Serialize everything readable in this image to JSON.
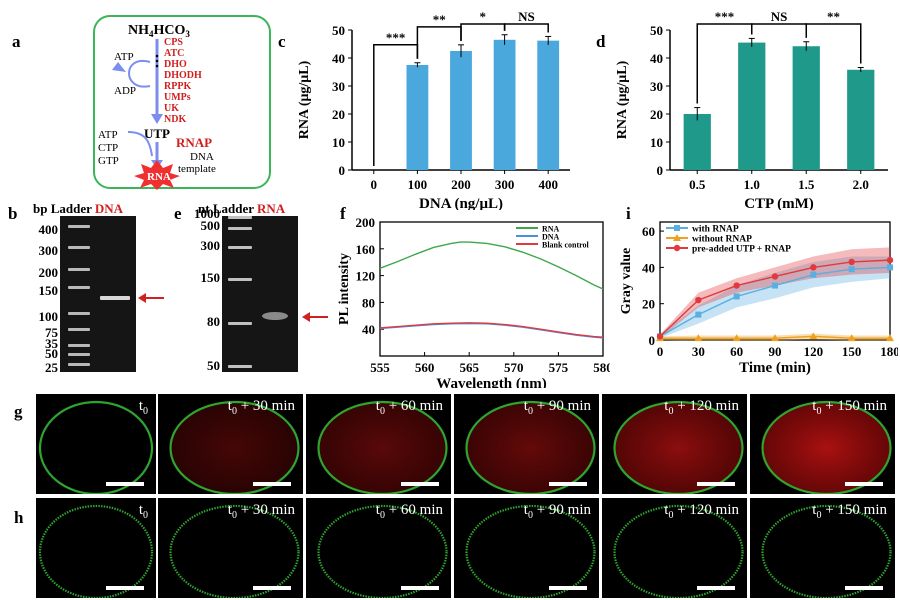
{
  "panel_a": {
    "label": "a",
    "top": "NH4HCO3",
    "enzymes": [
      "CPS",
      "ATC",
      "DHO",
      "DHODH",
      "RPPK",
      "UMPs",
      "UK",
      "NDK"
    ],
    "left_top": "ATP",
    "left_bottom": "ADP",
    "utp": "UTP",
    "inputs": [
      "ATP",
      "CTP",
      "GTP"
    ],
    "rnap": "RNAP",
    "template_line1": "DNA",
    "template_line2": "template",
    "product": "RNA"
  },
  "panel_b": {
    "label": "b",
    "header_unit": "bp",
    "header_ladder": "Ladder",
    "header_sample": "DNA",
    "ladder_ticks": [
      "400",
      "300",
      "200",
      "150",
      "100",
      "75",
      "50",
      "35",
      "25"
    ]
  },
  "panel_e": {
    "label": "e",
    "header_unit": "nt",
    "header_ladder": "Ladder",
    "header_sample": "RNA",
    "ladder_ticks": [
      "1000",
      "500",
      "300",
      "150",
      "80",
      "50"
    ]
  },
  "chart_data": [
    {
      "id": "c",
      "type": "bar",
      "xlabel": "DNA (ng/μL)",
      "ylabel": "RNA (μg/μL)",
      "categories": [
        "0",
        "100",
        "200",
        "300",
        "400"
      ],
      "values": [
        0,
        37.5,
        42.5,
        46.5,
        46.2
      ],
      "errors": [
        0,
        0.8,
        2.2,
        1.8,
        1.5
      ],
      "ylim": [
        0,
        50
      ],
      "yticks": [
        "0",
        "10",
        "20",
        "30",
        "40",
        "50"
      ],
      "significance": [
        {
          "from": "0",
          "to": "100",
          "label": "***"
        },
        {
          "from": "100",
          "to": "200",
          "label": "**"
        },
        {
          "from": "200",
          "to": "300",
          "label": "*"
        },
        {
          "from": "300",
          "to": "400",
          "label": "NS"
        }
      ],
      "bar_color": "#4aa8dc"
    },
    {
      "id": "d",
      "type": "bar",
      "xlabel": "CTP (mM)",
      "ylabel": "RNA (μg/μL)",
      "categories": [
        "0.5",
        "1.0",
        "1.5",
        "2.0"
      ],
      "values": [
        20,
        45.5,
        44.2,
        35.8
      ],
      "errors": [
        2.3,
        1.5,
        1.6,
        0.8
      ],
      "ylim": [
        0,
        50
      ],
      "yticks": [
        "0",
        "10",
        "20",
        "30",
        "40",
        "50"
      ],
      "significance": [
        {
          "from": "0.5",
          "to": "1.0",
          "label": "***"
        },
        {
          "from": "1.0",
          "to": "1.5",
          "label": "NS"
        },
        {
          "from": "1.5",
          "to": "2.0",
          "label": "**"
        }
      ],
      "bar_color": "#1f9a8a"
    },
    {
      "id": "f",
      "type": "line",
      "xlabel": "Wavelength (nm)",
      "ylabel": "PL intensity",
      "xlim": [
        555,
        580
      ],
      "ylim": [
        0,
        200
      ],
      "xticks": [
        "555",
        "560",
        "565",
        "570",
        "575",
        "580"
      ],
      "yticks": [
        "40",
        "80",
        "120",
        "160",
        "200"
      ],
      "legend": "top-right",
      "series": [
        {
          "name": "RNA",
          "color": "#3da84a",
          "x": [
            555,
            557,
            559,
            561,
            563,
            564,
            565,
            567,
            569,
            571,
            573,
            575,
            577,
            579,
            580
          ],
          "y": [
            131,
            141,
            152,
            162,
            168,
            170,
            170,
            168,
            163,
            155,
            145,
            133,
            120,
            106,
            100
          ]
        },
        {
          "name": "DNA",
          "color": "#4a90e2",
          "x": [
            555,
            557,
            559,
            561,
            563,
            565,
            567,
            569,
            571,
            573,
            575,
            577,
            579,
            580
          ],
          "y": [
            41,
            43,
            45,
            47,
            48,
            48.5,
            48,
            46,
            43,
            39,
            35,
            31,
            28,
            27
          ]
        },
        {
          "name": "Blank control",
          "color": "#e0393e",
          "x": [
            555,
            557,
            559,
            561,
            563,
            565,
            567,
            569,
            571,
            573,
            575,
            577,
            579,
            580
          ],
          "y": [
            42,
            44,
            46,
            48,
            49,
            49.5,
            49,
            47,
            44,
            40,
            36,
            32,
            29,
            28
          ]
        }
      ]
    },
    {
      "id": "i",
      "type": "line",
      "xlabel": "Time (min)",
      "ylabel": "Gray value",
      "xlim": [
        0,
        180
      ],
      "ylim": [
        0,
        65
      ],
      "xticks": [
        "0",
        "30",
        "60",
        "90",
        "120",
        "150",
        "180"
      ],
      "yticks": [
        "0",
        "20",
        "40",
        "60"
      ],
      "legend": "top-left",
      "series": [
        {
          "name": "with RNAP",
          "color": "#5aaee0",
          "marker": "square",
          "x": [
            0,
            30,
            60,
            90,
            120,
            150,
            180
          ],
          "y": [
            2,
            14,
            24,
            30,
            36,
            39,
            40
          ],
          "band": [
            1,
            5,
            6,
            7,
            7,
            7,
            6
          ]
        },
        {
          "name": "without RNAP",
          "color": "#f0a020",
          "marker": "triangle",
          "x": [
            0,
            30,
            60,
            90,
            120,
            150,
            180
          ],
          "y": [
            1,
            1,
            1,
            1,
            2,
            1,
            1
          ],
          "band": [
            1,
            1.5,
            1.5,
            1.5,
            1.5,
            1.5,
            1.5
          ]
        },
        {
          "name": "pre-added UTP + RNAP",
          "color": "#e0393e",
          "marker": "circle",
          "x": [
            0,
            30,
            60,
            90,
            120,
            150,
            180
          ],
          "y": [
            2,
            22,
            30,
            35,
            40,
            43,
            44
          ],
          "band": [
            1,
            4,
            4,
            5,
            6,
            7,
            7
          ]
        }
      ]
    }
  ],
  "row_g": {
    "label": "g",
    "times": [
      "t0",
      "t0 + 30 min",
      "t0 + 60 min",
      "t0 + 90 min",
      "t0 + 120 min",
      "t0 + 150 min"
    ],
    "red_intensity": [
      0,
      0.35,
      0.45,
      0.5,
      0.7,
      0.85
    ]
  },
  "row_h": {
    "label": "h",
    "times": [
      "t0",
      "t0 + 30 min",
      "t0 + 60 min",
      "t0 + 90 min",
      "t0 + 120 min",
      "t0 + 150 min"
    ]
  },
  "colors": {
    "enzyme_red": "#d02020",
    "green_box": "#3cb45a",
    "arrow_blue": "#7b8ef0",
    "burst_red": "#f03030"
  }
}
